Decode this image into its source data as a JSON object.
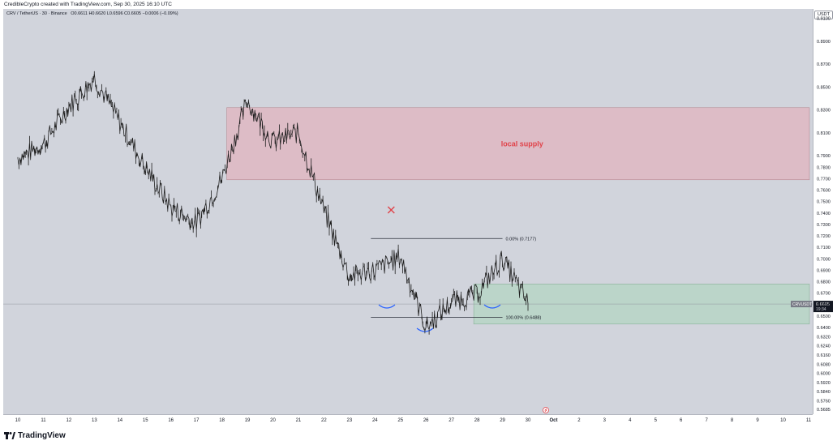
{
  "header": {
    "credit": "CredibleCrypto created with TradingView.com, Sep 30, 2025 16:10 UTC"
  },
  "legend": {
    "symbol": "CRV / TetherUS · 30 · Binance",
    "ohlc": "O0.6611 H0.6620 L0.6596 C0.6605 −0.0006 (−0.09%)"
  },
  "currency_button": "USDT",
  "footer": {
    "brand": "TradingView"
  },
  "colors": {
    "chart_bg": "#d1d4dc",
    "supply_zone": "#e8a7b4",
    "demand_zone": "#a9d6b9",
    "candles": "#1e1e1e",
    "marker": "#e0434a",
    "curve": "#2962ff"
  },
  "chart_data": {
    "type": "line",
    "title": "",
    "xlabel": "",
    "ylabel": "",
    "ylim": [
      0.5643,
      0.9182
    ],
    "x_ticks": [
      "10",
      "11",
      "12",
      "13",
      "14",
      "15",
      "16",
      "17",
      "18",
      "19",
      "20",
      "21",
      "22",
      "23",
      "24",
      "25",
      "26",
      "27",
      "28",
      "29",
      "30",
      "Oct",
      "2",
      "3",
      "4",
      "5",
      "6",
      "7",
      "8",
      "9",
      "10",
      "11"
    ],
    "y_ticks": [
      "0.9100",
      "0.8900",
      "0.8700",
      "0.8500",
      "0.8300",
      "0.8100",
      "0.7900",
      "0.7800",
      "0.7700",
      "0.7600",
      "0.7500",
      "0.7400",
      "0.7300",
      "0.7200",
      "0.7100",
      "0.7000",
      "0.6900",
      "0.6800",
      "0.6700",
      "0.6600",
      "0.6500",
      "0.6400",
      "0.6320",
      "0.6240",
      "0.6160",
      "0.6080",
      "0.6000",
      "0.5920",
      "0.5840",
      "0.5760",
      "0.5685"
    ],
    "series": [
      {
        "dates": [
          "Sep 10",
          "Sep 11",
          "Sep 12",
          "Sep 13",
          "Sep 14",
          "Sep 15",
          "Sep 16",
          "Sep 17",
          "Sep 18",
          "Sep 19",
          "Sep 20",
          "Sep 21",
          "Sep 22",
          "Sep 23",
          "Sep 24",
          "Sep 25",
          "Sep 26",
          "Sep 27",
          "Sep 28",
          "Sep 29",
          "Sep 30"
        ],
        "values": [
          0.788,
          0.8,
          0.833,
          0.858,
          0.819,
          0.78,
          0.745,
          0.731,
          0.77,
          0.838,
          0.802,
          0.81,
          0.742,
          0.685,
          0.69,
          0.702,
          0.64,
          0.662,
          0.669,
          0.7,
          0.661
        ]
      }
    ],
    "annotations": {
      "supply_zone": {
        "label": "local supply",
        "from": "Sep 18",
        "to": "Oct 11",
        "high": 0.832,
        "low": 0.769
      },
      "demand_zone": {
        "from": "Sep 28",
        "to": "Oct 11",
        "high": 0.678,
        "low": 0.643
      },
      "fib_0": {
        "label": "0.00% (0.7177)",
        "value": 0.7177
      },
      "fib_100": {
        "label": "100.00% (0.6488)",
        "value": 0.6488
      },
      "last_price": {
        "symbol": "CRVUSDT",
        "price": "0.6605",
        "countdown": "19:34",
        "value": 0.6605
      }
    }
  }
}
